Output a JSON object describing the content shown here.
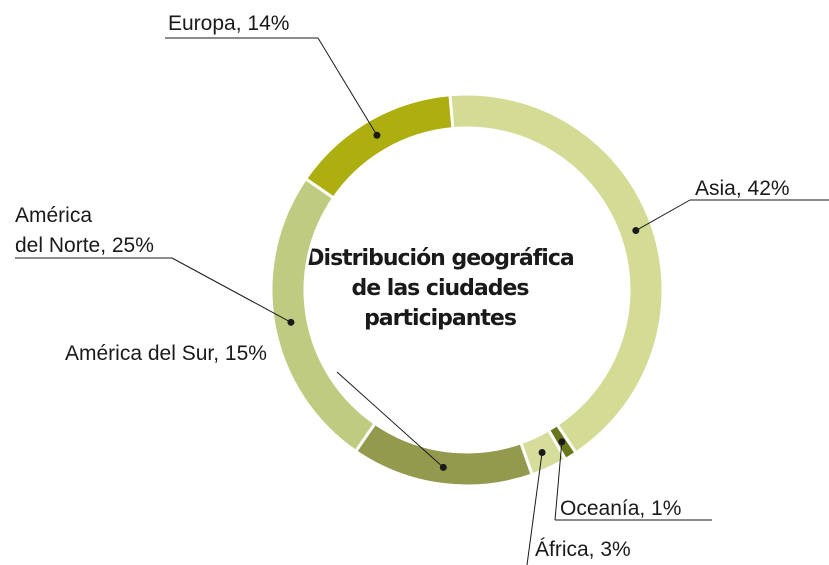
{
  "chart_data": {
    "type": "donut",
    "title": "Distribución geográfica\nde las ciudades\nparticipantes",
    "values": [
      42,
      1,
      3,
      15,
      25,
      14
    ],
    "value_labels": [
      "Asia, 42%",
      "Oceanía, 1%",
      "África, 3%",
      "América del Sur, 15%",
      "América\ndel Norte, 25%",
      "Europa, 14%"
    ],
    "colors": [
      "#d3db95",
      "#6a781c",
      "#d6dd9b",
      "#939a4e",
      "#bfcb80",
      "#adae10"
    ]
  }
}
